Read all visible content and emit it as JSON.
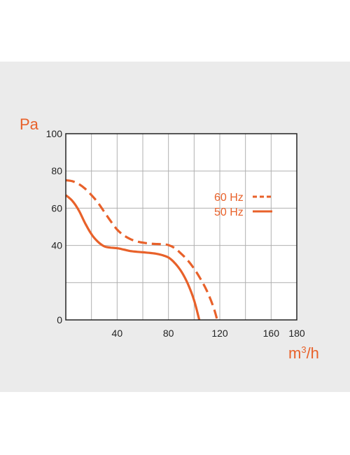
{
  "colors": {
    "accent": "#e8612a",
    "background": "#ebebeb",
    "plot": "#ffffff",
    "grid": "#b0b0b0"
  },
  "chart_data": {
    "type": "line",
    "title": "",
    "xlabel": "m³/h",
    "xlabel_base": "m",
    "xlabel_sup": "3",
    "xlabel_tail": "/h",
    "ylabel": "Pa",
    "xlim": [
      0,
      180
    ],
    "ylim": [
      0,
      100
    ],
    "xticks": [
      40,
      80,
      120,
      160,
      180
    ],
    "yticks": [
      0,
      40,
      60,
      80,
      100
    ],
    "grid": true,
    "legend_position": "right",
    "series": [
      {
        "name": "60 Hz",
        "style": "dashed",
        "x": [
          0,
          5,
          10,
          15,
          20,
          25,
          30,
          35,
          40,
          45,
          50,
          55,
          60,
          65,
          70,
          75,
          80,
          85,
          90,
          95,
          100,
          105,
          110,
          115,
          118
        ],
        "y": [
          75,
          74.5,
          73,
          70.5,
          67,
          63,
          58,
          53,
          48.5,
          45.5,
          43.5,
          42.2,
          41.5,
          41,
          40.8,
          40.6,
          40.2,
          38.5,
          35.5,
          32,
          27.5,
          22,
          15.5,
          7,
          0
        ]
      },
      {
        "name": "50 Hz",
        "style": "solid",
        "x": [
          0,
          5,
          10,
          15,
          20,
          25,
          30,
          35,
          40,
          45,
          50,
          55,
          60,
          65,
          70,
          75,
          80,
          85,
          90,
          95,
          100,
          104
        ],
        "y": [
          67,
          64,
          59,
          52,
          46,
          42,
          39.5,
          38.8,
          38.5,
          37.8,
          37,
          36.6,
          36.3,
          36,
          35.6,
          34.8,
          33.5,
          30.5,
          26,
          19.5,
          10.5,
          0
        ]
      }
    ]
  }
}
